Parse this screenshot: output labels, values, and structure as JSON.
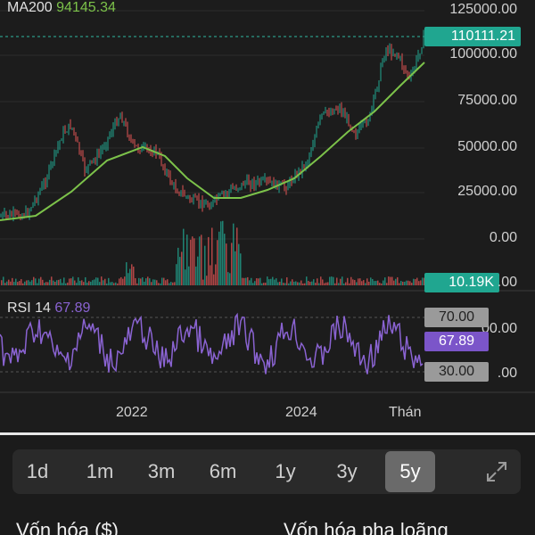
{
  "indicators": {
    "ma_name": "MA200",
    "ma_value": "94145.34",
    "rsi_name": "RSI 14",
    "rsi_value": "67.89"
  },
  "price_axis": [
    "125000.00",
    "100000.00",
    "75000.00",
    "50000.00",
    "25000.00",
    "0.00"
  ],
  "rsi_axis_partial": [
    ".00",
    "00.00",
    ".00"
  ],
  "badges": {
    "current_price": "110111.21",
    "volume": "10.19K",
    "rsi_upper": "70.00",
    "rsi_current": "67.89",
    "rsi_lower": "30.00"
  },
  "dates": [
    "2022",
    "2024",
    "Thán"
  ],
  "ranges": [
    {
      "label": "1d",
      "active": false
    },
    {
      "label": "1m",
      "active": false
    },
    {
      "label": "3m",
      "active": false
    },
    {
      "label": "6m",
      "active": false
    },
    {
      "label": "1y",
      "active": false
    },
    {
      "label": "3y",
      "active": false
    },
    {
      "label": "5y",
      "active": true
    }
  ],
  "metrics": {
    "market_cap": "Vốn hóa ($)",
    "diluted_market_cap": "Vốn hóa pha loãng"
  },
  "colors": {
    "up": "#20a690",
    "down": "#e05454",
    "ma": "#7cc24a",
    "rsi": "#8a63d2"
  },
  "icons": {
    "expand": "expand-icon"
  },
  "chart_data": {
    "type": "line",
    "series": [],
    "y_axis": {
      "range": [
        0,
        125000
      ]
    },
    "rsi_levels": [
      70,
      30
    ]
  }
}
